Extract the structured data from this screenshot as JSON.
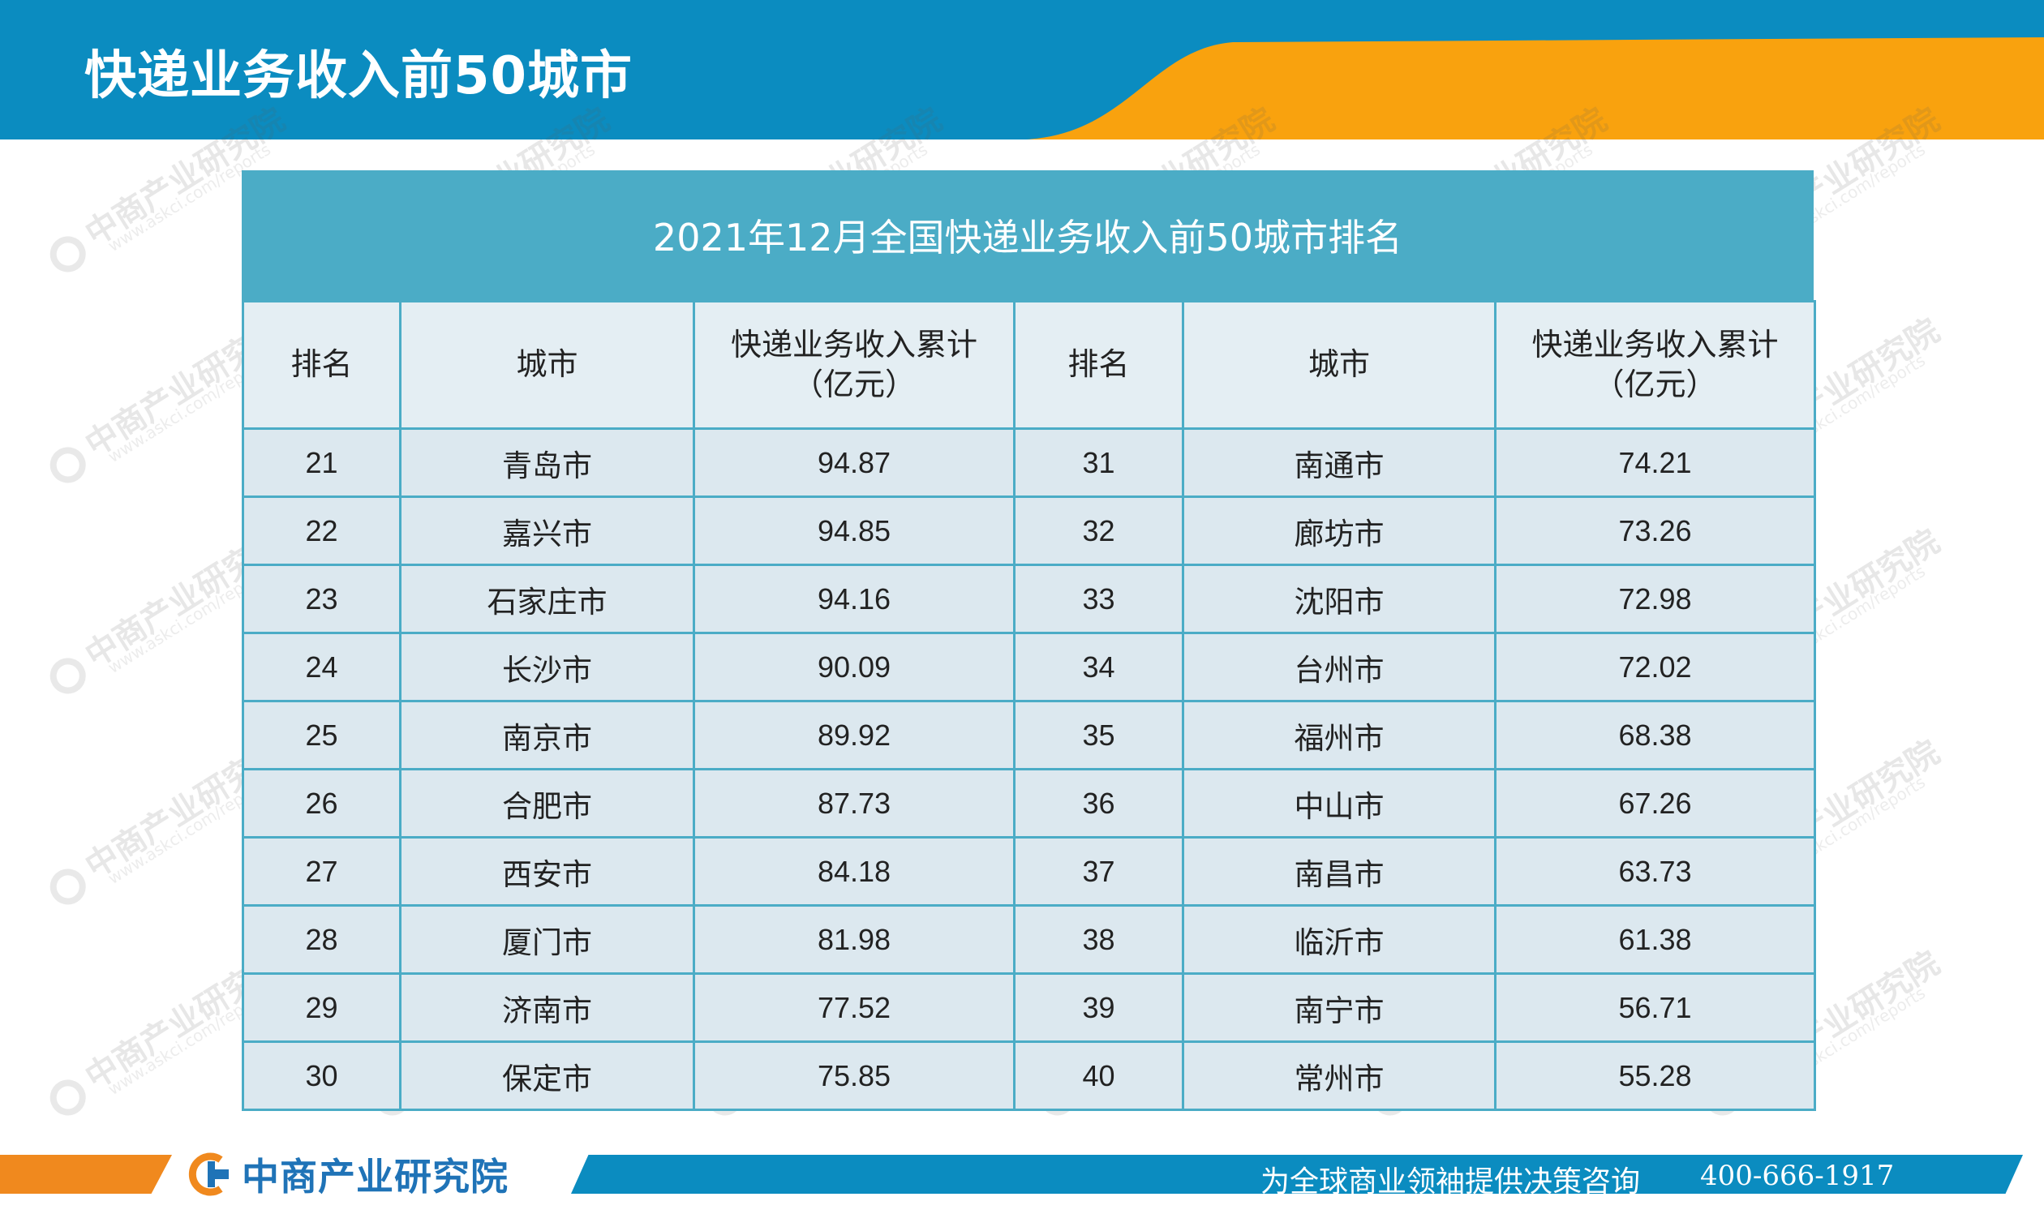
{
  "header": {
    "title": "快递业务收入前50城市",
    "colors": {
      "blue": "#0b8cc0",
      "orange": "#f9a20e"
    }
  },
  "table": {
    "title": "2021年12月全国快递业务收入前50城市排名",
    "headers": {
      "rank": "排名",
      "city": "城市",
      "revenue_line1": "快递业务收入累计",
      "revenue_line2": "（亿元）"
    },
    "left_rows": [
      {
        "rank": "21",
        "city": "青岛市",
        "revenue": "94.87"
      },
      {
        "rank": "22",
        "city": "嘉兴市",
        "revenue": "94.85"
      },
      {
        "rank": "23",
        "city": "石家庄市",
        "revenue": "94.16"
      },
      {
        "rank": "24",
        "city": "长沙市",
        "revenue": "90.09"
      },
      {
        "rank": "25",
        "city": "南京市",
        "revenue": "89.92"
      },
      {
        "rank": "26",
        "city": "合肥市",
        "revenue": "87.73"
      },
      {
        "rank": "27",
        "city": "西安市",
        "revenue": "84.18"
      },
      {
        "rank": "28",
        "city": "厦门市",
        "revenue": "81.98"
      },
      {
        "rank": "29",
        "city": "济南市",
        "revenue": "77.52"
      },
      {
        "rank": "30",
        "city": "保定市",
        "revenue": "75.85"
      }
    ],
    "right_rows": [
      {
        "rank": "31",
        "city": "南通市",
        "revenue": "74.21"
      },
      {
        "rank": "32",
        "city": "廊坊市",
        "revenue": "73.26"
      },
      {
        "rank": "33",
        "city": "沈阳市",
        "revenue": "72.98"
      },
      {
        "rank": "34",
        "city": "台州市",
        "revenue": "72.02"
      },
      {
        "rank": "35",
        "city": "福州市",
        "revenue": "68.38"
      },
      {
        "rank": "36",
        "city": "中山市",
        "revenue": "67.26"
      },
      {
        "rank": "37",
        "city": "南昌市",
        "revenue": "63.73"
      },
      {
        "rank": "38",
        "city": "临沂市",
        "revenue": "61.38"
      },
      {
        "rank": "39",
        "city": "南宁市",
        "revenue": "56.71"
      },
      {
        "rank": "40",
        "city": "常州市",
        "revenue": "55.28"
      }
    ],
    "colors": {
      "title_bg": "#4bacc6",
      "cell_bg": "#dce8ef",
      "border": "#4bacc6"
    }
  },
  "watermark": {
    "text": "中商产业研究院",
    "url": "www.askci.com/reports"
  },
  "footer": {
    "logo_text": "中商产业研究院",
    "slogan": "为全球商业领袖提供决策咨询",
    "phone": "400-666-1917"
  }
}
